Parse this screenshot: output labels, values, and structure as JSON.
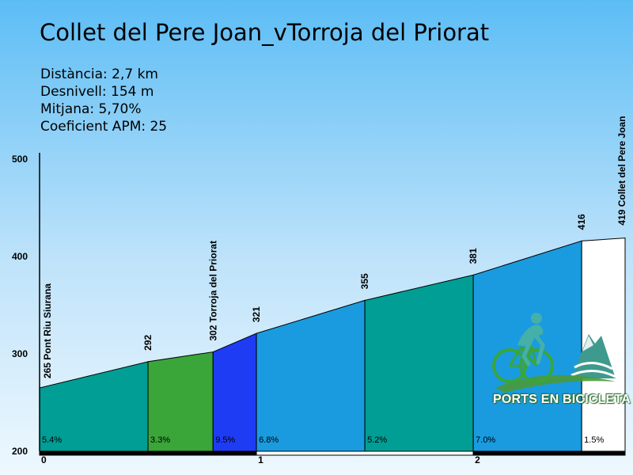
{
  "title": "Collet del Pere Joan_vTorroja del Priorat",
  "stats": {
    "distance": "Distància: 2,7 km",
    "elevation_gain": "Desnivell: 154 m",
    "average": "Mitjana: 5,70%",
    "coefficient": "Coeficient APM: 25"
  },
  "logo": {
    "text": "PORTS EN BICICLETA"
  },
  "chart_data": {
    "type": "area",
    "title": "Collet del Pere Joan_vTorroja del Priorat",
    "xlabel": "",
    "ylabel": "",
    "xlim": [
      0,
      2.7
    ],
    "ylim": [
      200,
      500
    ],
    "y_ticks": [
      "500",
      "400",
      "300",
      "200"
    ],
    "x_ticks": [
      "0",
      "1",
      "2"
    ],
    "points": [
      {
        "x": 0,
        "y": 265,
        "label": "265 Pont Riu Siurana"
      },
      {
        "x": 0.5,
        "y": 292,
        "label": "292"
      },
      {
        "x": 0.8,
        "y": 302,
        "label": "302 Torroja del Priorat"
      },
      {
        "x": 1.0,
        "y": 321,
        "label": "321"
      },
      {
        "x": 1.5,
        "y": 355,
        "label": "355"
      },
      {
        "x": 2.0,
        "y": 381,
        "label": "381"
      },
      {
        "x": 2.5,
        "y": 416,
        "label": "416"
      },
      {
        "x": 2.7,
        "y": 419,
        "label": "419 Collet del Pere Joan"
      }
    ],
    "segments": [
      {
        "from": 0,
        "to": 0.5,
        "gradient": "5.4%",
        "color": "#009e94"
      },
      {
        "from": 0.5,
        "to": 0.8,
        "gradient": "3.3%",
        "color": "#3aa63a"
      },
      {
        "from": 0.8,
        "to": 1.0,
        "gradient": "9.5%",
        "color": "#1f3cf5"
      },
      {
        "from": 1.0,
        "to": 1.5,
        "gradient": "6.8%",
        "color": "#1a9be0"
      },
      {
        "from": 1.5,
        "to": 2.0,
        "gradient": "5.2%",
        "color": "#009e94"
      },
      {
        "from": 2.0,
        "to": 2.5,
        "gradient": "7.0%",
        "color": "#1a9be0"
      },
      {
        "from": 2.5,
        "to": 2.7,
        "gradient": "1.5%",
        "color": "#ffffff"
      }
    ]
  }
}
